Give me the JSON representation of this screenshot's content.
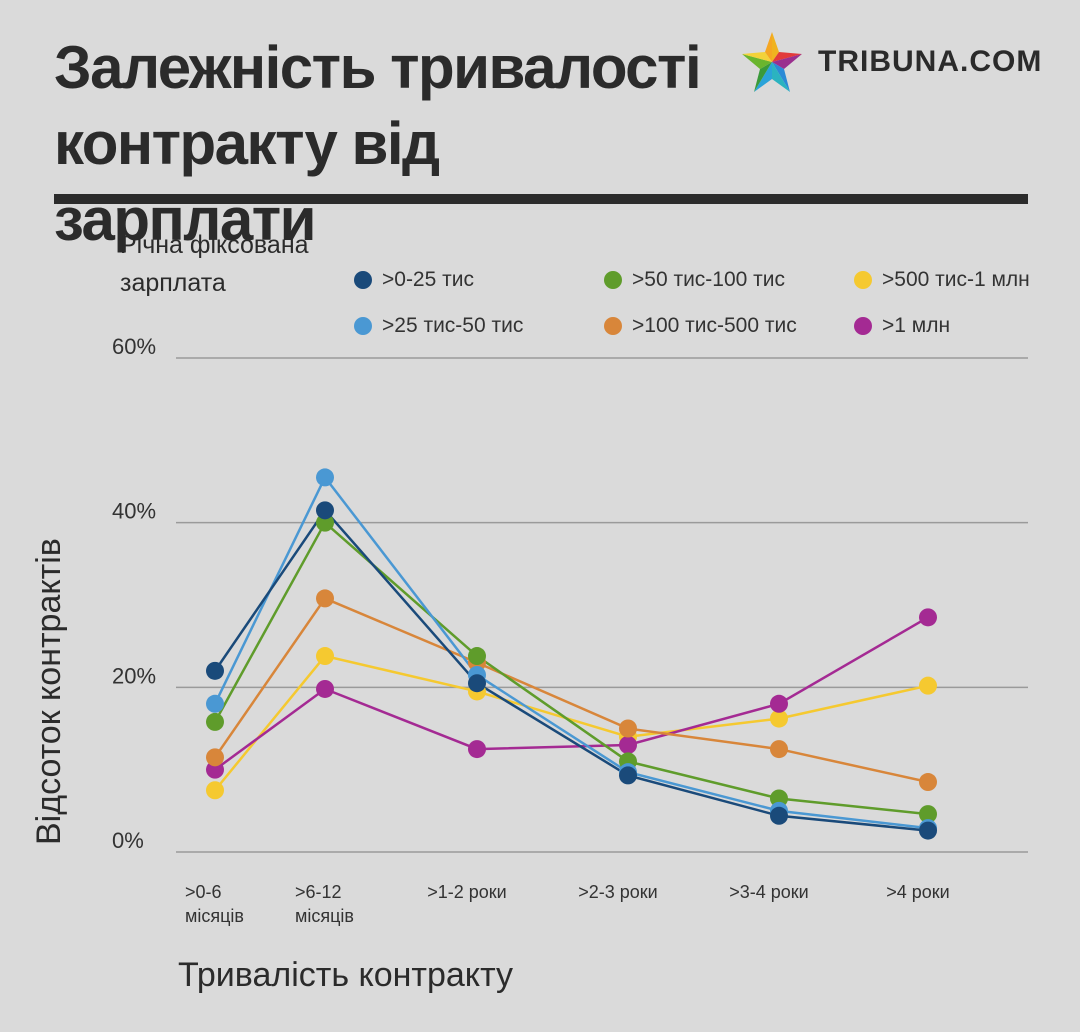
{
  "header": {
    "title_line1": "Залежність тривалості",
    "title_line2": "контракту від зарплати",
    "logo_text": "TRIBUNA.COM"
  },
  "legend": {
    "title_line1": "Річна фіксована",
    "title_line2": "зарплата"
  },
  "chart_data": {
    "type": "line",
    "title": "Залежність тривалості контракту від зарплати",
    "xlabel": "Тривалість контракту",
    "ylabel": "Відсоток контрактів",
    "ylim": [
      0,
      60
    ],
    "yticks": [
      "0%",
      "20%",
      "40%",
      "60%"
    ],
    "grid": true,
    "legend_placement": "top",
    "categories": [
      ">0-6 місяців",
      ">6-12 місяців",
      ">1-2 роки",
      ">2-3 роки",
      ">3-4 роки",
      ">4 роки"
    ],
    "category_lines": [
      [
        ">0-6",
        "місяців"
      ],
      [
        ">6-12",
        "місяців"
      ],
      [
        ">1-2 роки"
      ],
      [
        ">2-3 роки"
      ],
      [
        ">3-4 роки"
      ],
      [
        ">4 роки"
      ]
    ],
    "series": [
      {
        "name": ">0-25 тис",
        "color": "#1a4a7a",
        "values": [
          22.0,
          41.5,
          20.5,
          9.3,
          4.4,
          2.6
        ]
      },
      {
        "name": ">25 тис-50 тис",
        "color": "#4a98d3",
        "values": [
          18.0,
          45.5,
          21.5,
          9.7,
          5.0,
          2.9
        ]
      },
      {
        "name": ">50 тис-100 тис",
        "color": "#5f9c2b",
        "values": [
          15.8,
          40.0,
          23.8,
          11.0,
          6.5,
          4.6
        ]
      },
      {
        "name": ">100 тис-500 тис",
        "color": "#d8863a",
        "values": [
          11.5,
          30.8,
          23.0,
          15.0,
          12.5,
          8.5
        ]
      },
      {
        "name": ">500 тис-1 млн",
        "color": "#f5c930",
        "values": [
          7.5,
          23.8,
          19.5,
          14.0,
          16.2,
          20.2
        ]
      },
      {
        "name": ">1 млн",
        "color": "#a42a93",
        "values": [
          10.0,
          19.8,
          12.5,
          13.0,
          18.0,
          28.5
        ]
      }
    ]
  }
}
